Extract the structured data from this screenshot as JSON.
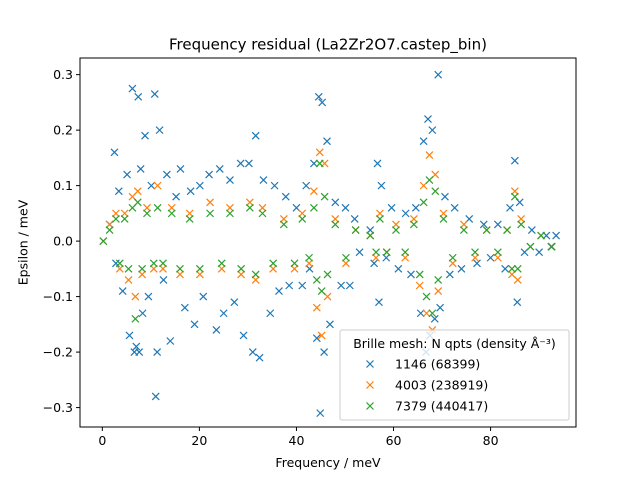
{
  "chart_data": {
    "type": "scatter",
    "title": "Frequency residual (La2Zr2O7.castep_bin)",
    "xlabel": "Frequency / meV",
    "ylabel": "Epsilon / meV",
    "xlim": [
      -4.6,
      97.6
    ],
    "ylim": [
      -0.335,
      0.33
    ],
    "xticks": [
      0,
      20,
      40,
      60,
      80
    ],
    "xtick_labels": [
      "0",
      "20",
      "40",
      "60",
      "80"
    ],
    "yticks": [
      -0.3,
      -0.2,
      -0.1,
      0.0,
      0.1,
      0.2,
      0.3
    ],
    "ytick_labels": [
      "−0.3",
      "−0.2",
      "−0.1",
      "0.0",
      "0.1",
      "0.2",
      "0.3"
    ],
    "grid": false,
    "marker": "x",
    "legend": {
      "title": "Brille mesh: N qpts (density Å⁻³)",
      "position": "lower-right"
    },
    "series": [
      {
        "name": "1146 (68399)",
        "color": "#1f77b4",
        "points": [
          [
            0.2,
            0.0
          ],
          [
            1.5,
            0.03
          ],
          [
            2.5,
            0.16
          ],
          [
            2.8,
            -0.04
          ],
          [
            3.4,
            0.09
          ],
          [
            4.2,
            -0.09
          ],
          [
            5.1,
            0.12
          ],
          [
            5.6,
            -0.17
          ],
          [
            6.2,
            0.275
          ],
          [
            6.6,
            -0.2
          ],
          [
            7.0,
            -0.19
          ],
          [
            7.4,
            0.26
          ],
          [
            7.6,
            -0.2
          ],
          [
            7.9,
            0.13
          ],
          [
            8.3,
            -0.13
          ],
          [
            8.8,
            0.19
          ],
          [
            9.5,
            -0.1
          ],
          [
            10.1,
            0.1
          ],
          [
            10.8,
            0.265
          ],
          [
            11.0,
            -0.28
          ],
          [
            11.3,
            -0.2
          ],
          [
            11.8,
            0.2
          ],
          [
            12.6,
            -0.07
          ],
          [
            13.3,
            0.12
          ],
          [
            14.0,
            -0.18
          ],
          [
            15.2,
            0.08
          ],
          [
            16.1,
            0.13
          ],
          [
            17.0,
            -0.12
          ],
          [
            18.2,
            0.09
          ],
          [
            19.0,
            -0.15
          ],
          [
            20.1,
            0.1
          ],
          [
            20.8,
            -0.1
          ],
          [
            22.0,
            0.12
          ],
          [
            23.5,
            -0.16
          ],
          [
            24.2,
            0.13
          ],
          [
            25.0,
            -0.13
          ],
          [
            26.3,
            0.11
          ],
          [
            27.2,
            -0.11
          ],
          [
            28.5,
            0.14
          ],
          [
            29.1,
            -0.17
          ],
          [
            30.2,
            0.14
          ],
          [
            31.0,
            -0.2
          ],
          [
            31.6,
            0.19
          ],
          [
            32.4,
            -0.21
          ],
          [
            33.2,
            0.11
          ],
          [
            34.6,
            -0.13
          ],
          [
            35.5,
            0.1
          ],
          [
            36.4,
            -0.09
          ],
          [
            37.8,
            0.08
          ],
          [
            38.5,
            -0.08
          ],
          [
            40.0,
            0.06
          ],
          [
            41.2,
            -0.08
          ],
          [
            42.0,
            0.1
          ],
          [
            42.7,
            -0.05
          ],
          [
            43.6,
            0.14
          ],
          [
            44.2,
            -0.175
          ],
          [
            44.6,
            0.26
          ],
          [
            44.9,
            -0.31
          ],
          [
            45.3,
            0.25
          ],
          [
            45.7,
            -0.2
          ],
          [
            46.3,
            0.18
          ],
          [
            46.9,
            -0.15
          ],
          [
            48.0,
            0.07
          ],
          [
            49.2,
            -0.08
          ],
          [
            50.1,
            0.06
          ],
          [
            51.0,
            -0.08
          ],
          [
            52.0,
            0.04
          ],
          [
            53.0,
            -0.02
          ],
          [
            55.2,
            0.02
          ],
          [
            56.0,
            -0.04
          ],
          [
            56.7,
            0.14
          ],
          [
            57.0,
            -0.11
          ],
          [
            57.5,
            0.1
          ],
          [
            58.5,
            -0.03
          ],
          [
            59.6,
            0.06
          ],
          [
            61.0,
            -0.05
          ],
          [
            62.5,
            0.05
          ],
          [
            63.6,
            -0.06
          ],
          [
            64.6,
            0.06
          ],
          [
            65.6,
            -0.13
          ],
          [
            66.2,
            0.18
          ],
          [
            66.7,
            -0.2
          ],
          [
            67.1,
            0.22
          ],
          [
            67.5,
            -0.17
          ],
          [
            68.0,
            0.2
          ],
          [
            68.5,
            -0.14
          ],
          [
            69.2,
            0.3
          ],
          [
            69.6,
            -0.12
          ],
          [
            70.6,
            0.08
          ],
          [
            71.6,
            -0.06
          ],
          [
            72.6,
            0.06
          ],
          [
            74.0,
            -0.05
          ],
          [
            75.6,
            0.04
          ],
          [
            77.2,
            -0.04
          ],
          [
            78.6,
            0.03
          ],
          [
            80.0,
            -0.03
          ],
          [
            81.5,
            0.03
          ],
          [
            83.0,
            -0.05
          ],
          [
            84.0,
            0.06
          ],
          [
            85.0,
            0.145
          ],
          [
            85.5,
            -0.11
          ],
          [
            86.0,
            0.07
          ],
          [
            87.0,
            -0.02
          ],
          [
            88.5,
            0.02
          ],
          [
            90.0,
            -0.02
          ],
          [
            91.5,
            0.01
          ],
          [
            92.5,
            -0.01
          ],
          [
            93.5,
            0.01
          ]
        ]
      },
      {
        "name": "4003 (238919)",
        "color": "#ff7f0e",
        "points": [
          [
            0.2,
            0.0
          ],
          [
            1.5,
            0.03
          ],
          [
            2.8,
            0.05
          ],
          [
            3.6,
            -0.05
          ],
          [
            4.6,
            0.05
          ],
          [
            5.4,
            -0.07
          ],
          [
            6.2,
            0.08
          ],
          [
            6.8,
            -0.1
          ],
          [
            7.3,
            0.09
          ],
          [
            8.2,
            -0.06
          ],
          [
            9.2,
            0.06
          ],
          [
            10.6,
            -0.05
          ],
          [
            11.4,
            0.1
          ],
          [
            12.5,
            -0.05
          ],
          [
            14.3,
            0.06
          ],
          [
            16.0,
            -0.06
          ],
          [
            18.0,
            0.05
          ],
          [
            20.1,
            -0.06
          ],
          [
            22.2,
            0.07
          ],
          [
            24.6,
            -0.05
          ],
          [
            26.3,
            0.06
          ],
          [
            28.6,
            -0.06
          ],
          [
            30.4,
            0.07
          ],
          [
            31.6,
            -0.07
          ],
          [
            33.0,
            0.06
          ],
          [
            35.2,
            -0.05
          ],
          [
            37.4,
            0.04
          ],
          [
            39.6,
            -0.05
          ],
          [
            41.2,
            0.05
          ],
          [
            42.6,
            -0.04
          ],
          [
            43.6,
            0.09
          ],
          [
            44.2,
            -0.12
          ],
          [
            44.8,
            0.16
          ],
          [
            45.2,
            -0.17
          ],
          [
            45.8,
            0.14
          ],
          [
            46.4,
            -0.1
          ],
          [
            48.0,
            0.04
          ],
          [
            50.2,
            -0.04
          ],
          [
            52.2,
            0.02
          ],
          [
            55.2,
            0.01
          ],
          [
            56.4,
            -0.03
          ],
          [
            57.2,
            0.05
          ],
          [
            58.6,
            -0.02
          ],
          [
            60.5,
            0.03
          ],
          [
            62.4,
            -0.03
          ],
          [
            64.2,
            0.04
          ],
          [
            65.4,
            -0.08
          ],
          [
            66.2,
            0.1
          ],
          [
            66.8,
            -0.13
          ],
          [
            67.4,
            0.155
          ],
          [
            68.0,
            -0.16
          ],
          [
            68.6,
            0.12
          ],
          [
            69.2,
            -0.09
          ],
          [
            70.3,
            0.05
          ],
          [
            72.2,
            -0.04
          ],
          [
            74.5,
            0.03
          ],
          [
            76.8,
            -0.03
          ],
          [
            79.2,
            0.02
          ],
          [
            81.5,
            -0.03
          ],
          [
            83.4,
            0.02
          ],
          [
            84.4,
            -0.06
          ],
          [
            85.0,
            0.09
          ],
          [
            85.6,
            -0.07
          ],
          [
            86.3,
            0.04
          ],
          [
            88.2,
            -0.01
          ],
          [
            90.4,
            0.01
          ],
          [
            92.6,
            -0.01
          ]
        ]
      },
      {
        "name": "7379 (440417)",
        "color": "#2ca02c",
        "points": [
          [
            0.2,
            0.0
          ],
          [
            1.5,
            0.02
          ],
          [
            2.8,
            0.04
          ],
          [
            3.6,
            -0.04
          ],
          [
            4.6,
            0.04
          ],
          [
            5.4,
            -0.05
          ],
          [
            6.2,
            0.06
          ],
          [
            6.8,
            -0.14
          ],
          [
            7.3,
            0.07
          ],
          [
            8.2,
            -0.05
          ],
          [
            9.2,
            0.05
          ],
          [
            10.6,
            -0.04
          ],
          [
            11.4,
            0.06
          ],
          [
            12.5,
            -0.04
          ],
          [
            14.3,
            0.05
          ],
          [
            16.0,
            -0.05
          ],
          [
            18.0,
            0.04
          ],
          [
            20.1,
            -0.05
          ],
          [
            22.2,
            0.05
          ],
          [
            24.6,
            -0.04
          ],
          [
            26.3,
            0.05
          ],
          [
            28.6,
            -0.05
          ],
          [
            30.4,
            0.06
          ],
          [
            31.6,
            -0.06
          ],
          [
            33.0,
            0.05
          ],
          [
            35.2,
            -0.04
          ],
          [
            37.4,
            0.03
          ],
          [
            39.6,
            -0.04
          ],
          [
            41.2,
            0.04
          ],
          [
            42.6,
            -0.03
          ],
          [
            43.6,
            0.06
          ],
          [
            44.2,
            -0.07
          ],
          [
            44.8,
            0.14
          ],
          [
            45.2,
            -0.09
          ],
          [
            45.8,
            0.08
          ],
          [
            46.4,
            -0.06
          ],
          [
            48.0,
            0.03
          ],
          [
            50.2,
            -0.03
          ],
          [
            52.2,
            0.02
          ],
          [
            55.2,
            0.01
          ],
          [
            56.4,
            -0.02
          ],
          [
            57.2,
            0.04
          ],
          [
            58.6,
            -0.02
          ],
          [
            60.5,
            0.02
          ],
          [
            62.4,
            -0.02
          ],
          [
            64.2,
            0.03
          ],
          [
            65.4,
            -0.06
          ],
          [
            66.2,
            0.07
          ],
          [
            66.8,
            -0.1
          ],
          [
            67.4,
            0.11
          ],
          [
            68.0,
            -0.13
          ],
          [
            68.6,
            0.09
          ],
          [
            69.2,
            -0.07
          ],
          [
            70.3,
            0.04
          ],
          [
            72.2,
            -0.03
          ],
          [
            74.5,
            0.02
          ],
          [
            76.8,
            -0.02
          ],
          [
            79.2,
            0.02
          ],
          [
            81.5,
            -0.02
          ],
          [
            83.4,
            0.02
          ],
          [
            84.4,
            -0.05
          ],
          [
            85.0,
            0.08
          ],
          [
            85.6,
            -0.05
          ],
          [
            86.3,
            0.03
          ],
          [
            88.2,
            -0.01
          ],
          [
            90.4,
            0.01
          ],
          [
            92.6,
            -0.01
          ]
        ]
      }
    ]
  }
}
